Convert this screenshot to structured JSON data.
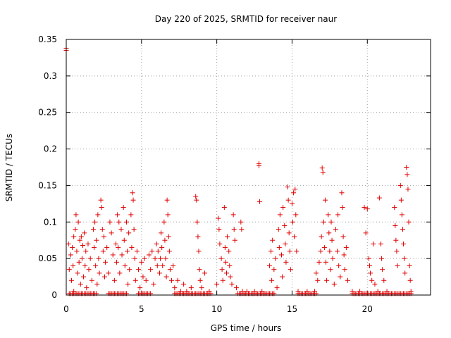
{
  "chart_data": {
    "type": "scatter",
    "title": "Day 220 of 2025, SRMTID for receiver naur",
    "xlabel": "GPS time / hours",
    "ylabel": "SRMTID / TECUs",
    "xlim": [
      0,
      24.2
    ],
    "ylim": [
      0,
      0.35
    ],
    "xticks": [
      0,
      5,
      10,
      15,
      20
    ],
    "xtick_labels": [
      "0",
      "5",
      "10",
      "15",
      "20"
    ],
    "yticks": [
      0,
      0.05,
      0.1,
      0.15,
      0.2,
      0.25,
      0.3,
      0.35
    ],
    "ytick_labels": [
      "0",
      "0.05",
      "0.1",
      "0.15",
      "0.2",
      "0.25",
      "0.3",
      "0.35"
    ],
    "grid": true,
    "marker": "+",
    "color": "#e00000",
    "series": [
      {
        "name": "SRMTID",
        "points": [
          [
            0.0,
            0.338
          ],
          [
            0.0,
            0.335
          ],
          [
            0.15,
            0.07
          ],
          [
            0.2,
            0.035
          ],
          [
            0.3,
            0.055
          ],
          [
            0.35,
            0.02
          ],
          [
            0.4,
            0.065
          ],
          [
            0.45,
            0.04
          ],
          [
            0.5,
            0.08
          ],
          [
            0.5,
            0.005
          ],
          [
            0.6,
            0.09
          ],
          [
            0.65,
            0.11
          ],
          [
            0.7,
            0.06
          ],
          [
            0.75,
            0.03
          ],
          [
            0.8,
            0.1
          ],
          [
            0.85,
            0.045
          ],
          [
            0.9,
            0.075
          ],
          [
            0.95,
            0.015
          ],
          [
            1.0,
            0.08
          ],
          [
            1.05,
            0.05
          ],
          [
            1.1,
            0.068
          ],
          [
            1.15,
            0.025
          ],
          [
            1.2,
            0.085
          ],
          [
            1.25,
            0.04
          ],
          [
            1.3,
            0.06
          ],
          [
            1.35,
            0.01
          ],
          [
            1.45,
            0.07
          ],
          [
            1.5,
            0.035
          ],
          [
            1.6,
            0.05
          ],
          [
            1.7,
            0.02
          ],
          [
            1.8,
            0.09
          ],
          [
            1.85,
            0.065
          ],
          [
            1.9,
            0.1
          ],
          [
            1.95,
            0.04
          ],
          [
            2.0,
            0.075
          ],
          [
            2.05,
            0.015
          ],
          [
            2.1,
            0.11
          ],
          [
            2.15,
            0.05
          ],
          [
            2.2,
            0.03
          ],
          [
            2.3,
            0.13
          ],
          [
            2.35,
            0.12
          ],
          [
            2.4,
            0.09
          ],
          [
            2.45,
            0.06
          ],
          [
            2.5,
            0.08
          ],
          [
            2.55,
            0.025
          ],
          [
            2.6,
            0.045
          ],
          [
            2.7,
            0.065
          ],
          [
            2.8,
            0.03
          ],
          [
            2.9,
            0.1
          ],
          [
            3.0,
            0.085
          ],
          [
            3.1,
            0.055
          ],
          [
            3.2,
            0.02
          ],
          [
            3.3,
            0.07
          ],
          [
            3.35,
            0.045
          ],
          [
            3.4,
            0.11
          ],
          [
            3.45,
            0.065
          ],
          [
            3.5,
            0.1
          ],
          [
            3.55,
            0.03
          ],
          [
            3.65,
            0.09
          ],
          [
            3.7,
            0.055
          ],
          [
            3.8,
            0.12
          ],
          [
            3.85,
            0.075
          ],
          [
            3.9,
            0.04
          ],
          [
            4.0,
            0.1
          ],
          [
            4.05,
            0.06
          ],
          [
            4.1,
            0.015
          ],
          [
            4.15,
            0.085
          ],
          [
            4.2,
            0.035
          ],
          [
            4.3,
            0.11
          ],
          [
            4.35,
            0.065
          ],
          [
            4.4,
            0.14
          ],
          [
            4.45,
            0.13
          ],
          [
            4.5,
            0.09
          ],
          [
            4.55,
            0.05
          ],
          [
            4.6,
            0.02
          ],
          [
            4.7,
            0.06
          ],
          [
            4.8,
            0.035
          ],
          [
            4.9,
            0.01
          ],
          [
            5.0,
            0.045
          ],
          [
            5.1,
            0.025
          ],
          [
            5.2,
            0.05
          ],
          [
            5.3,
            0.02
          ],
          [
            5.5,
            0.055
          ],
          [
            5.6,
            0.035
          ],
          [
            5.7,
            0.06
          ],
          [
            5.8,
            0.015
          ],
          [
            5.9,
            0.05
          ],
          [
            6.0,
            0.07
          ],
          [
            6.05,
            0.04
          ],
          [
            6.1,
            0.06
          ],
          [
            6.2,
            0.03
          ],
          [
            6.25,
            0.05
          ],
          [
            6.3,
            0.085
          ],
          [
            6.35,
            0.065
          ],
          [
            6.4,
            0.04
          ],
          [
            6.5,
            0.1
          ],
          [
            6.55,
            0.075
          ],
          [
            6.6,
            0.05
          ],
          [
            6.65,
            0.025
          ],
          [
            6.7,
            0.13
          ],
          [
            6.75,
            0.11
          ],
          [
            6.8,
            0.08
          ],
          [
            6.85,
            0.06
          ],
          [
            6.9,
            0.035
          ],
          [
            7.0,
            0.02
          ],
          [
            7.1,
            0.04
          ],
          [
            7.2,
            0.01
          ],
          [
            7.4,
            0.02
          ],
          [
            7.6,
            0.005
          ],
          [
            7.8,
            0.015
          ],
          [
            8.0,
            0.005
          ],
          [
            8.3,
            0.01
          ],
          [
            8.6,
            0.135
          ],
          [
            8.65,
            0.13
          ],
          [
            8.7,
            0.1
          ],
          [
            8.75,
            0.08
          ],
          [
            8.8,
            0.06
          ],
          [
            8.85,
            0.035
          ],
          [
            8.9,
            0.02
          ],
          [
            9.0,
            0.01
          ],
          [
            9.2,
            0.03
          ],
          [
            9.5,
            0.005
          ],
          [
            10.0,
            0.015
          ],
          [
            10.1,
            0.105
          ],
          [
            10.15,
            0.09
          ],
          [
            10.2,
            0.07
          ],
          [
            10.3,
            0.05
          ],
          [
            10.35,
            0.035
          ],
          [
            10.4,
            0.02
          ],
          [
            10.5,
            0.12
          ],
          [
            10.55,
            0.065
          ],
          [
            10.6,
            0.045
          ],
          [
            10.65,
            0.03
          ],
          [
            10.7,
            0.08
          ],
          [
            10.8,
            0.06
          ],
          [
            10.85,
            0.04
          ],
          [
            10.9,
            0.025
          ],
          [
            11.0,
            0.015
          ],
          [
            11.1,
            0.11
          ],
          [
            11.15,
            0.09
          ],
          [
            11.2,
            0.075
          ],
          [
            11.3,
            0.01
          ],
          [
            11.6,
            0.1
          ],
          [
            11.65,
            0.09
          ],
          [
            11.7,
            0.005
          ],
          [
            12.0,
            0.005
          ],
          [
            12.5,
            0.005
          ],
          [
            12.8,
            0.18
          ],
          [
            12.8,
            0.177
          ],
          [
            12.85,
            0.128
          ],
          [
            13.0,
            0.005
          ],
          [
            13.5,
            0.04
          ],
          [
            13.6,
            0.06
          ],
          [
            13.65,
            0.02
          ],
          [
            13.7,
            0.075
          ],
          [
            13.8,
            0.035
          ],
          [
            13.9,
            0.05
          ],
          [
            14.0,
            0.01
          ],
          [
            14.1,
            0.09
          ],
          [
            14.15,
            0.065
          ],
          [
            14.2,
            0.11
          ],
          [
            14.3,
            0.055
          ],
          [
            14.35,
            0.025
          ],
          [
            14.4,
            0.12
          ],
          [
            14.5,
            0.095
          ],
          [
            14.55,
            0.07
          ],
          [
            14.6,
            0.045
          ],
          [
            14.7,
            0.148
          ],
          [
            14.75,
            0.13
          ],
          [
            14.8,
            0.085
          ],
          [
            14.85,
            0.06
          ],
          [
            14.9,
            0.035
          ],
          [
            15.0,
            0.125
          ],
          [
            15.05,
            0.1
          ],
          [
            15.1,
            0.14
          ],
          [
            15.15,
            0.08
          ],
          [
            15.2,
            0.145
          ],
          [
            15.25,
            0.11
          ],
          [
            15.3,
            0.06
          ],
          [
            15.4,
            0.005
          ],
          [
            16.0,
            0.005
          ],
          [
            16.5,
            0.005
          ],
          [
            16.6,
            0.03
          ],
          [
            16.7,
            0.02
          ],
          [
            16.8,
            0.045
          ],
          [
            16.9,
            0.06
          ],
          [
            16.95,
            0.08
          ],
          [
            17.0,
            0.174
          ],
          [
            17.05,
            0.168
          ],
          [
            17.1,
            0.1
          ],
          [
            17.15,
            0.065
          ],
          [
            17.2,
            0.13
          ],
          [
            17.25,
            0.045
          ],
          [
            17.3,
            0.02
          ],
          [
            17.4,
            0.11
          ],
          [
            17.45,
            0.085
          ],
          [
            17.5,
            0.06
          ],
          [
            17.55,
            0.035
          ],
          [
            17.6,
            0.1
          ],
          [
            17.65,
            0.075
          ],
          [
            17.7,
            0.05
          ],
          [
            17.8,
            0.015
          ],
          [
            17.9,
            0.09
          ],
          [
            18.0,
            0.06
          ],
          [
            18.05,
            0.11
          ],
          [
            18.1,
            0.04
          ],
          [
            18.2,
            0.025
          ],
          [
            18.3,
            0.14
          ],
          [
            18.35,
            0.12
          ],
          [
            18.4,
            0.08
          ],
          [
            18.45,
            0.055
          ],
          [
            18.5,
            0.035
          ],
          [
            18.6,
            0.065
          ],
          [
            18.7,
            0.02
          ],
          [
            19.0,
            0.005
          ],
          [
            19.5,
            0.005
          ],
          [
            19.8,
            0.12
          ],
          [
            19.9,
            0.085
          ],
          [
            20.0,
            0.118
          ],
          [
            20.1,
            0.05
          ],
          [
            20.15,
            0.04
          ],
          [
            20.2,
            0.03
          ],
          [
            20.3,
            0.02
          ],
          [
            20.4,
            0.07
          ],
          [
            20.5,
            0.015
          ],
          [
            20.7,
            0.005
          ],
          [
            20.8,
            0.133
          ],
          [
            20.9,
            0.07
          ],
          [
            20.95,
            0.05
          ],
          [
            21.0,
            0.035
          ],
          [
            21.1,
            0.02
          ],
          [
            21.3,
            0.005
          ],
          [
            21.8,
            0.12
          ],
          [
            21.85,
            0.095
          ],
          [
            21.9,
            0.075
          ],
          [
            21.95,
            0.06
          ],
          [
            22.0,
            0.04
          ],
          [
            22.2,
            0.15
          ],
          [
            22.25,
            0.13
          ],
          [
            22.3,
            0.11
          ],
          [
            22.35,
            0.09
          ],
          [
            22.4,
            0.07
          ],
          [
            22.45,
            0.05
          ],
          [
            22.5,
            0.03
          ],
          [
            22.6,
            0.175
          ],
          [
            22.65,
            0.165
          ],
          [
            22.7,
            0.145
          ],
          [
            22.75,
            0.1
          ],
          [
            22.8,
            0.04
          ],
          [
            22.85,
            0.02
          ],
          [
            22.9,
            0.005
          ]
        ]
      }
    ],
    "zero_band": [
      [
        0.2,
        2.0
      ],
      [
        2.8,
        4.0
      ],
      [
        4.8,
        5.6
      ],
      [
        7.2,
        9.6
      ],
      [
        11.4,
        13.8
      ],
      [
        15.4,
        16.6
      ],
      [
        19.0,
        22.9
      ]
    ]
  }
}
